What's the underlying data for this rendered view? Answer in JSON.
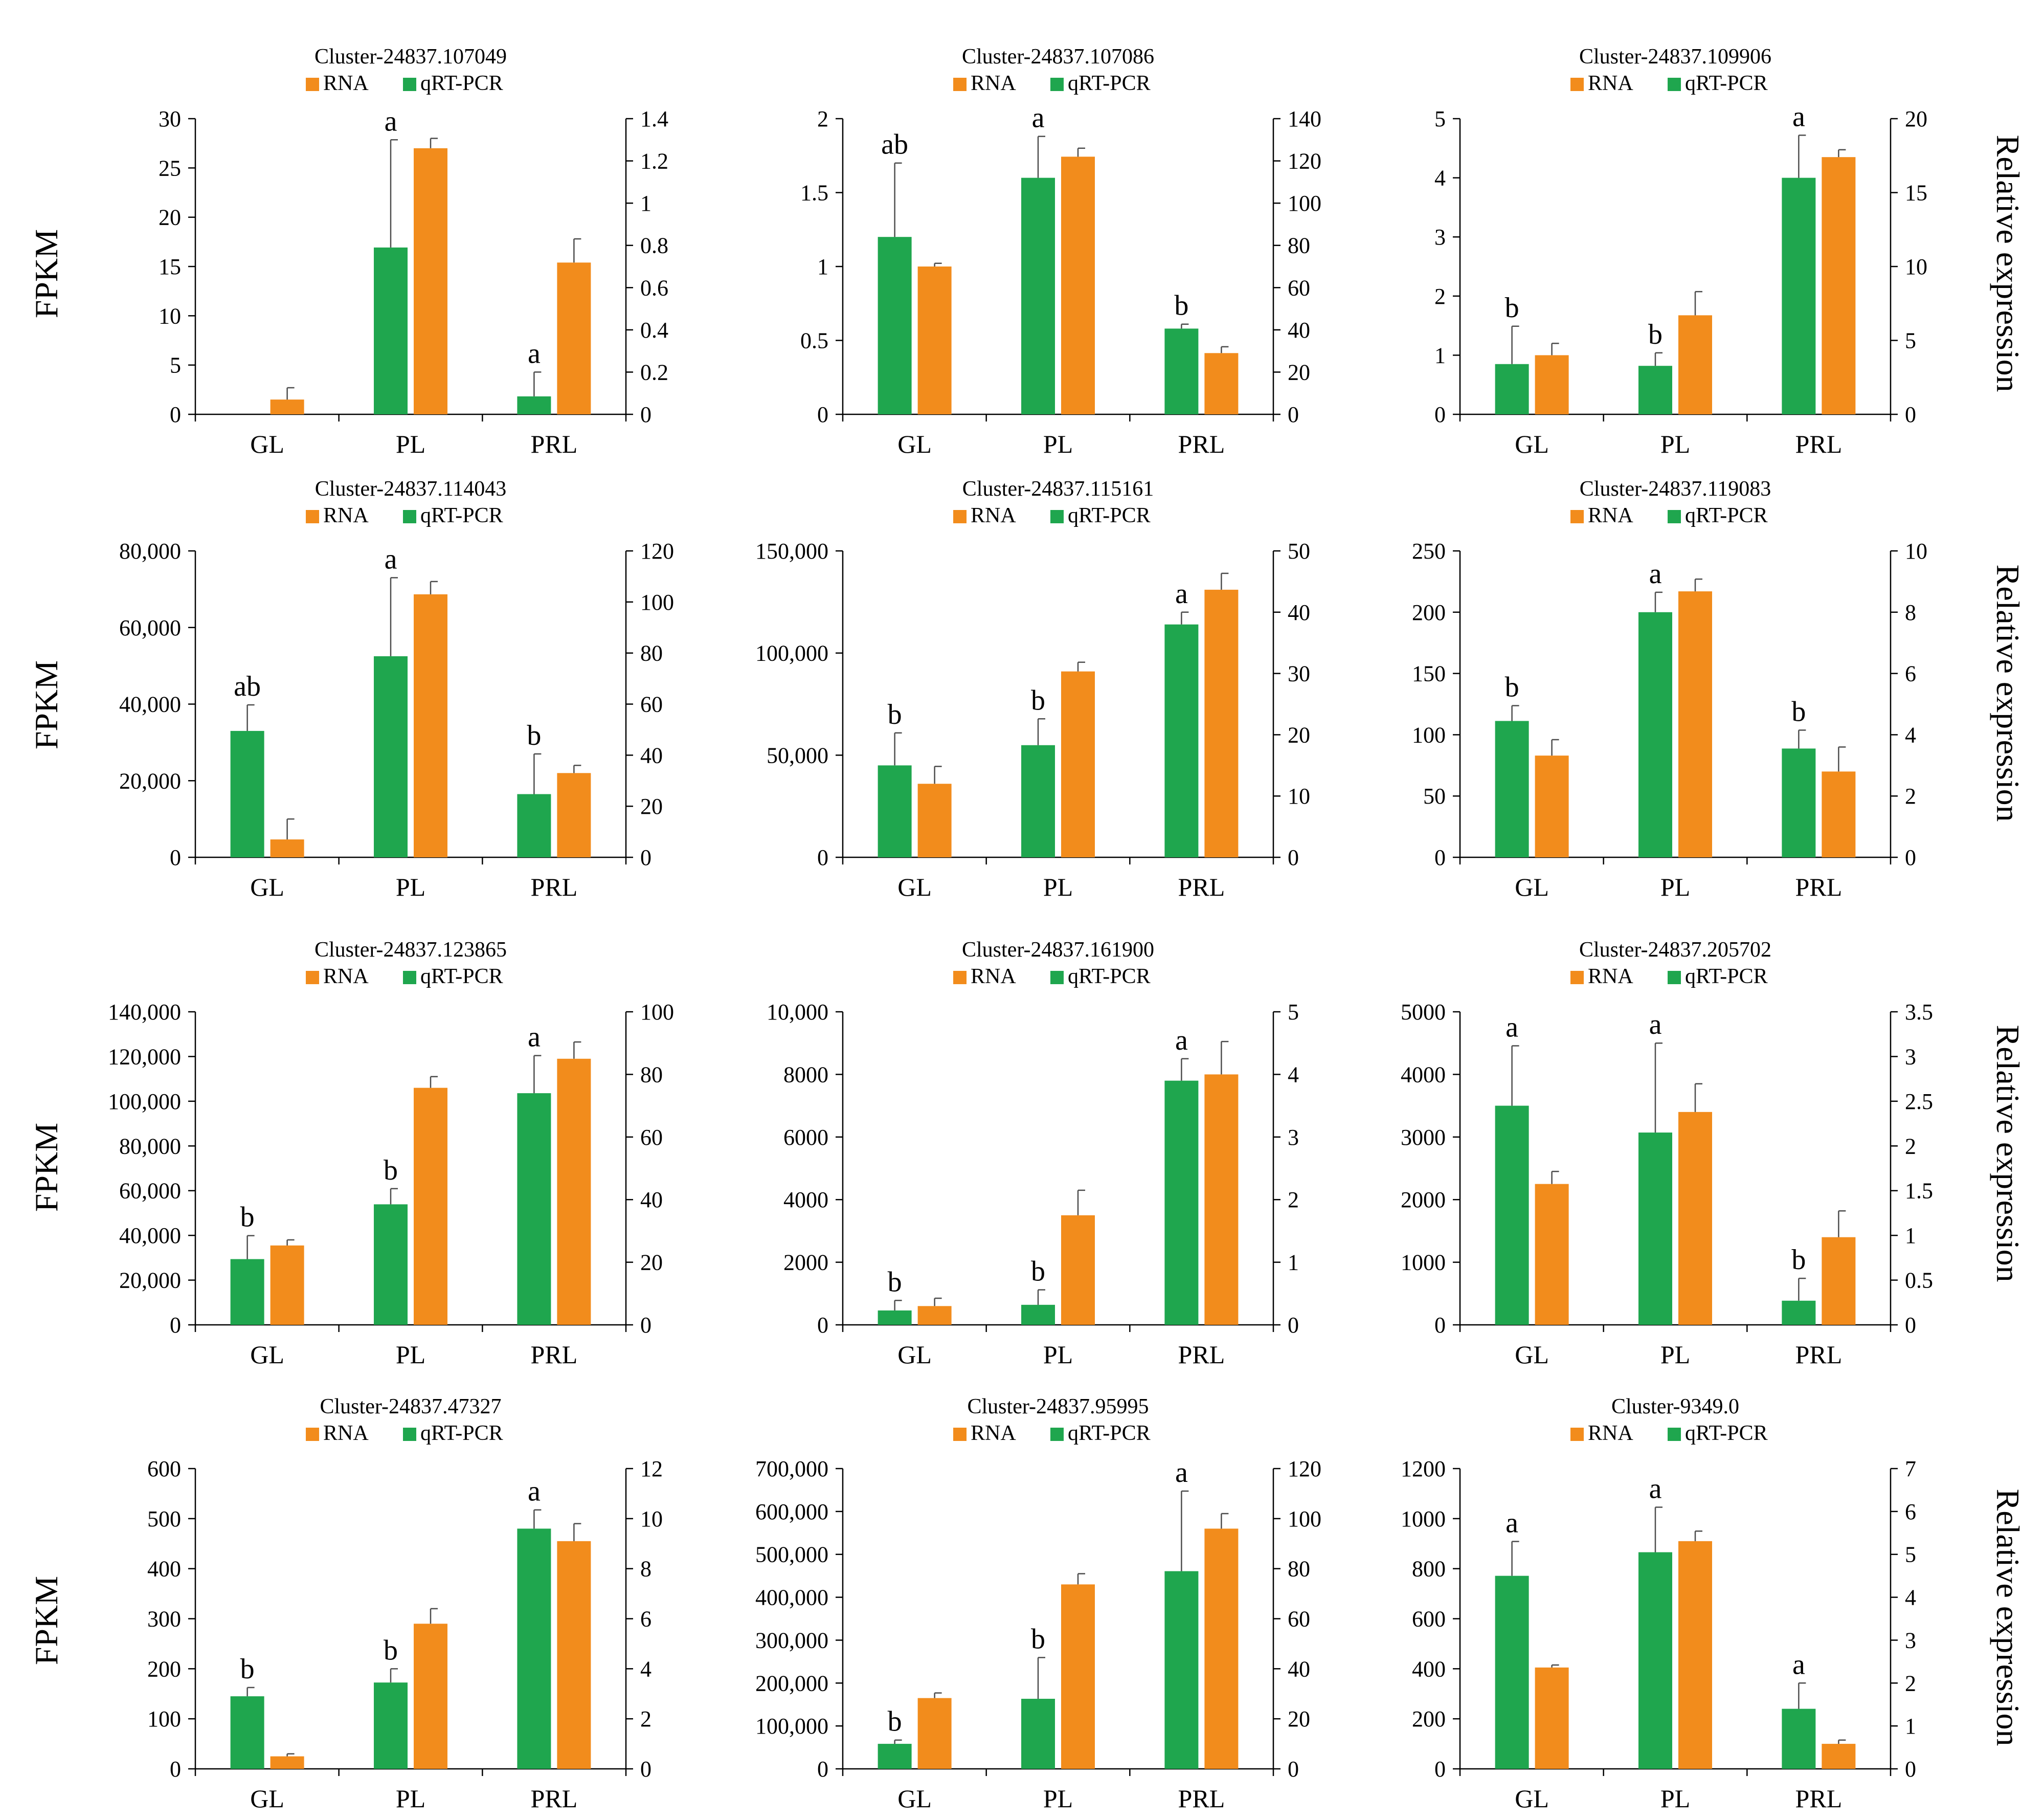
{
  "figure": {
    "left_axis_label": "FPKM",
    "right_axis_label": "Relative expression",
    "legend_labels": {
      "rna": "RNA",
      "qrt": "qRT-PCR"
    },
    "colors": {
      "rna": "#F28C1C",
      "qrt": "#1FA64E",
      "axis": "#000000",
      "error": "#4D4D4D"
    }
  },
  "chart_data": [
    {
      "type": "bar",
      "title": "Cluster-24837.107049",
      "categories": [
        "GL",
        "PL",
        "PRL"
      ],
      "series": [
        {
          "name": "qRT-PCR",
          "axis": "right",
          "values": [
            0,
            0.79,
            0.085
          ],
          "errors": [
            0,
            0.51,
            0.115
          ]
        },
        {
          "name": "RNA",
          "axis": "left",
          "values": [
            1.5,
            27,
            15.4
          ],
          "errors": [
            1.2,
            1.0,
            2.4
          ]
        }
      ],
      "sig_labels": [
        "",
        "a",
        "a"
      ],
      "left_axis": {
        "min": 0,
        "max": 30,
        "ticks": [
          "0",
          "5",
          "10",
          "15",
          "20",
          "25",
          "30"
        ]
      },
      "right_axis": {
        "min": 0,
        "max": 1.4,
        "ticks": [
          "0",
          "0.2",
          "0.4",
          "0.6",
          "0.8",
          "1",
          "1.2",
          "1.4"
        ]
      },
      "legend_order": [
        "RNA",
        "qRT-PCR"
      ],
      "row": 0,
      "col": 0
    },
    {
      "type": "bar",
      "title": "Cluster-24837.107086",
      "categories": [
        "GL",
        "PL",
        "PRL"
      ],
      "series": [
        {
          "name": "qRT-PCR",
          "axis": "left",
          "values": [
            1.2,
            1.6,
            0.58
          ],
          "errors": [
            0.5,
            0.28,
            0.03
          ]
        },
        {
          "name": "RNA",
          "axis": "right",
          "values": [
            70,
            122,
            29
          ],
          "errors": [
            1.5,
            4,
            3
          ]
        }
      ],
      "sig_labels": [
        "ab",
        "a",
        "b"
      ],
      "left_axis": {
        "min": 0,
        "max": 2,
        "ticks": [
          "0",
          "0.5",
          "1",
          "1.5",
          "2"
        ]
      },
      "right_axis": {
        "min": 0,
        "max": 140,
        "ticks": [
          "0",
          "20",
          "40",
          "60",
          "80",
          "100",
          "120",
          "140"
        ]
      },
      "legend_order": [
        "RNA",
        "qRT-PCR"
      ],
      "row": 0,
      "col": 1
    },
    {
      "type": "bar",
      "title": "Cluster-24837.109906",
      "categories": [
        "GL",
        "PL",
        "PRL"
      ],
      "series": [
        {
          "name": "qRT-PCR",
          "axis": "left",
          "values": [
            0.85,
            0.82,
            4.0
          ],
          "errors": [
            0.64,
            0.22,
            0.72
          ]
        },
        {
          "name": "RNA",
          "axis": "right",
          "values": [
            4.0,
            6.7,
            17.4
          ],
          "errors": [
            0.8,
            1.6,
            0.5
          ]
        }
      ],
      "sig_labels": [
        "b",
        "b",
        "a"
      ],
      "left_axis": {
        "min": 0,
        "max": 5,
        "ticks": [
          "0",
          "1",
          "2",
          "3",
          "4",
          "5"
        ]
      },
      "right_axis": {
        "min": 0,
        "max": 20,
        "ticks": [
          "0",
          "5",
          "10",
          "15",
          "20"
        ]
      },
      "legend_order": [
        "RNA",
        "qRT-PCR"
      ],
      "row": 0,
      "col": 2
    },
    {
      "type": "bar",
      "title": "Cluster-24837.114043",
      "categories": [
        "GL",
        "PL",
        "PRL"
      ],
      "series": [
        {
          "name": "qRT-PCR",
          "axis": "left",
          "values": [
            33000,
            52500,
            16500
          ],
          "errors": [
            6800,
            20500,
            10500
          ]
        },
        {
          "name": "RNA",
          "axis": "right",
          "values": [
            7,
            103,
            33
          ],
          "errors": [
            8,
            5,
            3
          ]
        }
      ],
      "sig_labels": [
        "ab",
        "a",
        "b"
      ],
      "left_axis": {
        "min": 0,
        "max": 80000,
        "ticks": [
          "0",
          "20,000",
          "40,000",
          "60,000",
          "80,000"
        ]
      },
      "right_axis": {
        "min": 0,
        "max": 120,
        "ticks": [
          "0",
          "20",
          "40",
          "60",
          "80",
          "100",
          "120"
        ]
      },
      "legend_order": [
        "RNA",
        "qRT-PCR"
      ],
      "row": 1,
      "col": 0
    },
    {
      "type": "bar",
      "title": "Cluster-24837.115161",
      "categories": [
        "GL",
        "PL",
        "PRL"
      ],
      "series": [
        {
          "name": "qRT-PCR",
          "axis": "right",
          "values": [
            15,
            18.3,
            38
          ],
          "errors": [
            5.3,
            4.3,
            2.0
          ]
        },
        {
          "name": "RNA",
          "axis": "left",
          "values": [
            36000,
            91000,
            131000
          ],
          "errors": [
            8500,
            4500,
            8000
          ]
        }
      ],
      "sig_labels": [
        "b",
        "b",
        "a"
      ],
      "left_axis": {
        "min": 0,
        "max": 150000,
        "ticks": [
          "0",
          "50,000",
          "100,000",
          "150,000"
        ]
      },
      "right_axis": {
        "min": 0,
        "max": 50,
        "ticks": [
          "0",
          "10",
          "20",
          "30",
          "40",
          "50"
        ]
      },
      "legend_order": [
        "RNA",
        "qRT-PCR"
      ],
      "row": 1,
      "col": 1
    },
    {
      "type": "bar",
      "title": "Cluster-24837.119083",
      "categories": [
        "GL",
        "PL",
        "PRL"
      ],
      "series": [
        {
          "name": "qRT-PCR",
          "axis": "right",
          "values": [
            4.45,
            8.0,
            3.55
          ],
          "errors": [
            0.5,
            0.65,
            0.6
          ]
        },
        {
          "name": "RNA",
          "axis": "left",
          "values": [
            83,
            217,
            70
          ],
          "errors": [
            13,
            10,
            20
          ]
        }
      ],
      "sig_labels": [
        "b",
        "a",
        "b"
      ],
      "left_axis": {
        "min": 0,
        "max": 250,
        "ticks": [
          "0",
          "50",
          "100",
          "150",
          "200",
          "250"
        ]
      },
      "right_axis": {
        "min": 0,
        "max": 10,
        "ticks": [
          "0",
          "2",
          "4",
          "6",
          "8",
          "10"
        ]
      },
      "legend_order": [
        "RNA",
        "qRT-PCR"
      ],
      "row": 1,
      "col": 2
    },
    {
      "type": "bar",
      "title": "Cluster-24837.123865",
      "categories": [
        "GL",
        "PL",
        "PRL"
      ],
      "series": [
        {
          "name": "qRT-PCR",
          "axis": "right",
          "values": [
            21,
            38.5,
            74
          ],
          "errors": [
            7.5,
            5,
            12
          ]
        },
        {
          "name": "RNA",
          "axis": "left",
          "values": [
            35500,
            106000,
            119000
          ],
          "errors": [
            2500,
            5000,
            7500
          ]
        }
      ],
      "sig_labels": [
        "b",
        "b",
        "a"
      ],
      "left_axis": {
        "min": 0,
        "max": 140000,
        "ticks": [
          "0",
          "20,000",
          "40,000",
          "60,000",
          "80,000",
          "100,000",
          "120,000",
          "140,000"
        ]
      },
      "right_axis": {
        "min": 0,
        "max": 100,
        "ticks": [
          "0",
          "20",
          "40",
          "60",
          "80",
          "100"
        ]
      },
      "legend_order": [
        "RNA",
        "qRT-PCR"
      ],
      "row": 2,
      "col": 0
    },
    {
      "type": "bar",
      "title": "Cluster-24837.161900",
      "categories": [
        "GL",
        "PL",
        "PRL"
      ],
      "series": [
        {
          "name": "qRT-PCR",
          "axis": "right",
          "values": [
            0.23,
            0.32,
            3.9
          ],
          "errors": [
            0.16,
            0.24,
            0.35
          ]
        },
        {
          "name": "RNA",
          "axis": "left",
          "values": [
            600,
            3500,
            8000
          ],
          "errors": [
            250,
            800,
            1050
          ]
        }
      ],
      "sig_labels": [
        "b",
        "b",
        "a"
      ],
      "left_axis": {
        "min": 0,
        "max": 10000,
        "ticks": [
          "0",
          "2000",
          "4000",
          "6000",
          "8000",
          "10,000"
        ]
      },
      "right_axis": {
        "min": 0,
        "max": 5,
        "ticks": [
          "0",
          "1",
          "2",
          "3",
          "4",
          "5"
        ]
      },
      "legend_order": [
        "RNA",
        "qRT-PCR"
      ],
      "row": 2,
      "col": 1
    },
    {
      "type": "bar",
      "title": "Cluster-24837.205702",
      "categories": [
        "GL",
        "PL",
        "PRL"
      ],
      "series": [
        {
          "name": "qRT-PCR",
          "axis": "right",
          "values": [
            2.45,
            2.15,
            0.27
          ],
          "errors": [
            0.67,
            1.0,
            0.25
          ]
        },
        {
          "name": "RNA",
          "axis": "left",
          "values": [
            2250,
            3400,
            1400
          ],
          "errors": [
            200,
            450,
            420
          ]
        }
      ],
      "sig_labels": [
        "a",
        "a",
        "b"
      ],
      "left_axis": {
        "min": 0,
        "max": 5000,
        "ticks": [
          "0",
          "1000",
          "2000",
          "3000",
          "4000",
          "5000"
        ]
      },
      "right_axis": {
        "min": 0,
        "max": 3.5,
        "ticks": [
          "0",
          "0.5",
          "1",
          "1.5",
          "2",
          "2.5",
          "3",
          "3.5"
        ]
      },
      "legend_order": [
        "RNA",
        "qRT-PCR"
      ],
      "row": 2,
      "col": 2
    },
    {
      "type": "bar",
      "title": "Cluster-24837.47327",
      "categories": [
        "GL",
        "PL",
        "PRL"
      ],
      "series": [
        {
          "name": "qRT-PCR",
          "axis": "right",
          "values": [
            2.9,
            3.45,
            9.6
          ],
          "errors": [
            0.35,
            0.55,
            0.75
          ]
        },
        {
          "name": "RNA",
          "axis": "left",
          "values": [
            25,
            290,
            455
          ],
          "errors": [
            5,
            30,
            35
          ]
        }
      ],
      "sig_labels": [
        "b",
        "b",
        "a"
      ],
      "left_axis": {
        "min": 0,
        "max": 600,
        "ticks": [
          "0",
          "100",
          "200",
          "300",
          "400",
          "500",
          "600"
        ]
      },
      "right_axis": {
        "min": 0,
        "max": 12,
        "ticks": [
          "0",
          "2",
          "4",
          "6",
          "8",
          "10",
          "12"
        ]
      },
      "legend_order": [
        "RNA",
        "qRT-PCR"
      ],
      "row": 3,
      "col": 0
    },
    {
      "type": "bar",
      "title": "Cluster-24837.95995",
      "categories": [
        "GL",
        "PL",
        "PRL"
      ],
      "series": [
        {
          "name": "qRT-PCR",
          "axis": "right",
          "values": [
            10,
            28,
            79
          ],
          "errors": [
            1.5,
            16.5,
            32
          ]
        },
        {
          "name": "RNA",
          "axis": "left",
          "values": [
            165000,
            430000,
            560000
          ],
          "errors": [
            12000,
            25000,
            35000
          ]
        }
      ],
      "sig_labels": [
        "b",
        "b",
        "a"
      ],
      "left_axis": {
        "min": 0,
        "max": 700000,
        "ticks": [
          "0",
          "100,000",
          "200,000",
          "300,000",
          "400,000",
          "500,000",
          "600,000",
          "700,000"
        ]
      },
      "right_axis": {
        "min": 0,
        "max": 120,
        "ticks": [
          "0",
          "20",
          "40",
          "60",
          "80",
          "100",
          "120"
        ]
      },
      "legend_order": [
        "RNA",
        "qRT-PCR"
      ],
      "row": 3,
      "col": 1
    },
    {
      "type": "bar",
      "title": "Cluster-9349.0",
      "categories": [
        "GL",
        "PL",
        "PRL"
      ],
      "series": [
        {
          "name": "qRT-PCR",
          "axis": "right",
          "values": [
            4.5,
            5.05,
            1.4
          ],
          "errors": [
            0.8,
            1.05,
            0.6
          ]
        },
        {
          "name": "RNA",
          "axis": "left",
          "values": [
            405,
            910,
            100
          ],
          "errors": [
            10,
            40,
            15
          ]
        }
      ],
      "sig_labels": [
        "a",
        "a",
        "a"
      ],
      "left_axis": {
        "min": 0,
        "max": 1200,
        "ticks": [
          "0",
          "200",
          "400",
          "600",
          "800",
          "1000",
          "1200"
        ]
      },
      "right_axis": {
        "min": 0,
        "max": 7,
        "ticks": [
          "0",
          "1",
          "2",
          "3",
          "4",
          "5",
          "6",
          "7"
        ]
      },
      "legend_order": [
        "RNA",
        "qRT-PCR"
      ],
      "row": 3,
      "col": 2
    }
  ]
}
